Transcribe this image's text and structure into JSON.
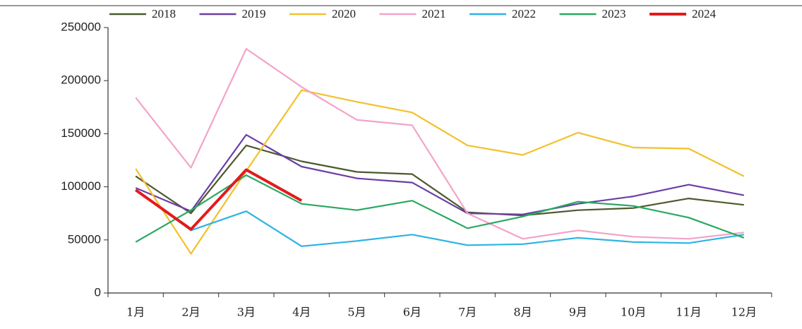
{
  "chart_data": {
    "type": "line",
    "categories": [
      "1月",
      "2月",
      "3月",
      "4月",
      "5月",
      "6月",
      "7月",
      "8月",
      "9月",
      "10月",
      "11月",
      "12月"
    ],
    "series": [
      {
        "name": "2018",
        "color": "#4b5a2c",
        "values": [
          110000,
          75000,
          139000,
          124000,
          114000,
          112000,
          76000,
          73000,
          78000,
          80000,
          89000,
          83000
        ]
      },
      {
        "name": "2019",
        "color": "#6a3fa6",
        "values": [
          99000,
          77000,
          149000,
          119000,
          108000,
          104000,
          75000,
          74000,
          84000,
          91000,
          102000,
          92000
        ]
      },
      {
        "name": "2020",
        "color": "#f2c12e",
        "values": [
          117000,
          37000,
          115000,
          191000,
          180000,
          170000,
          139000,
          130000,
          151000,
          137000,
          136000,
          110000
        ]
      },
      {
        "name": "2021",
        "color": "#f3a3c9",
        "values": [
          184000,
          118000,
          230000,
          194000,
          163000,
          158000,
          75000,
          51000,
          59000,
          53000,
          51000,
          57000
        ]
      },
      {
        "name": "2022",
        "color": "#2db3e3",
        "values": [
          97000,
          59000,
          77000,
          44000,
          49000,
          55000,
          45000,
          46000,
          52000,
          48000,
          47000,
          55000
        ]
      },
      {
        "name": "2023",
        "color": "#2aa862",
        "values": [
          48000,
          78000,
          111000,
          84000,
          78000,
          87000,
          61000,
          72000,
          86000,
          82000,
          71000,
          52000
        ]
      },
      {
        "name": "2024",
        "color": "#e31a1c",
        "values": [
          97000,
          60000,
          116000,
          87000,
          null,
          null,
          null,
          null,
          null,
          null,
          null,
          null
        ]
      }
    ],
    "ylim": [
      0,
      250000
    ],
    "yticks": [
      0,
      50000,
      100000,
      150000,
      200000,
      250000
    ],
    "grid": false
  }
}
